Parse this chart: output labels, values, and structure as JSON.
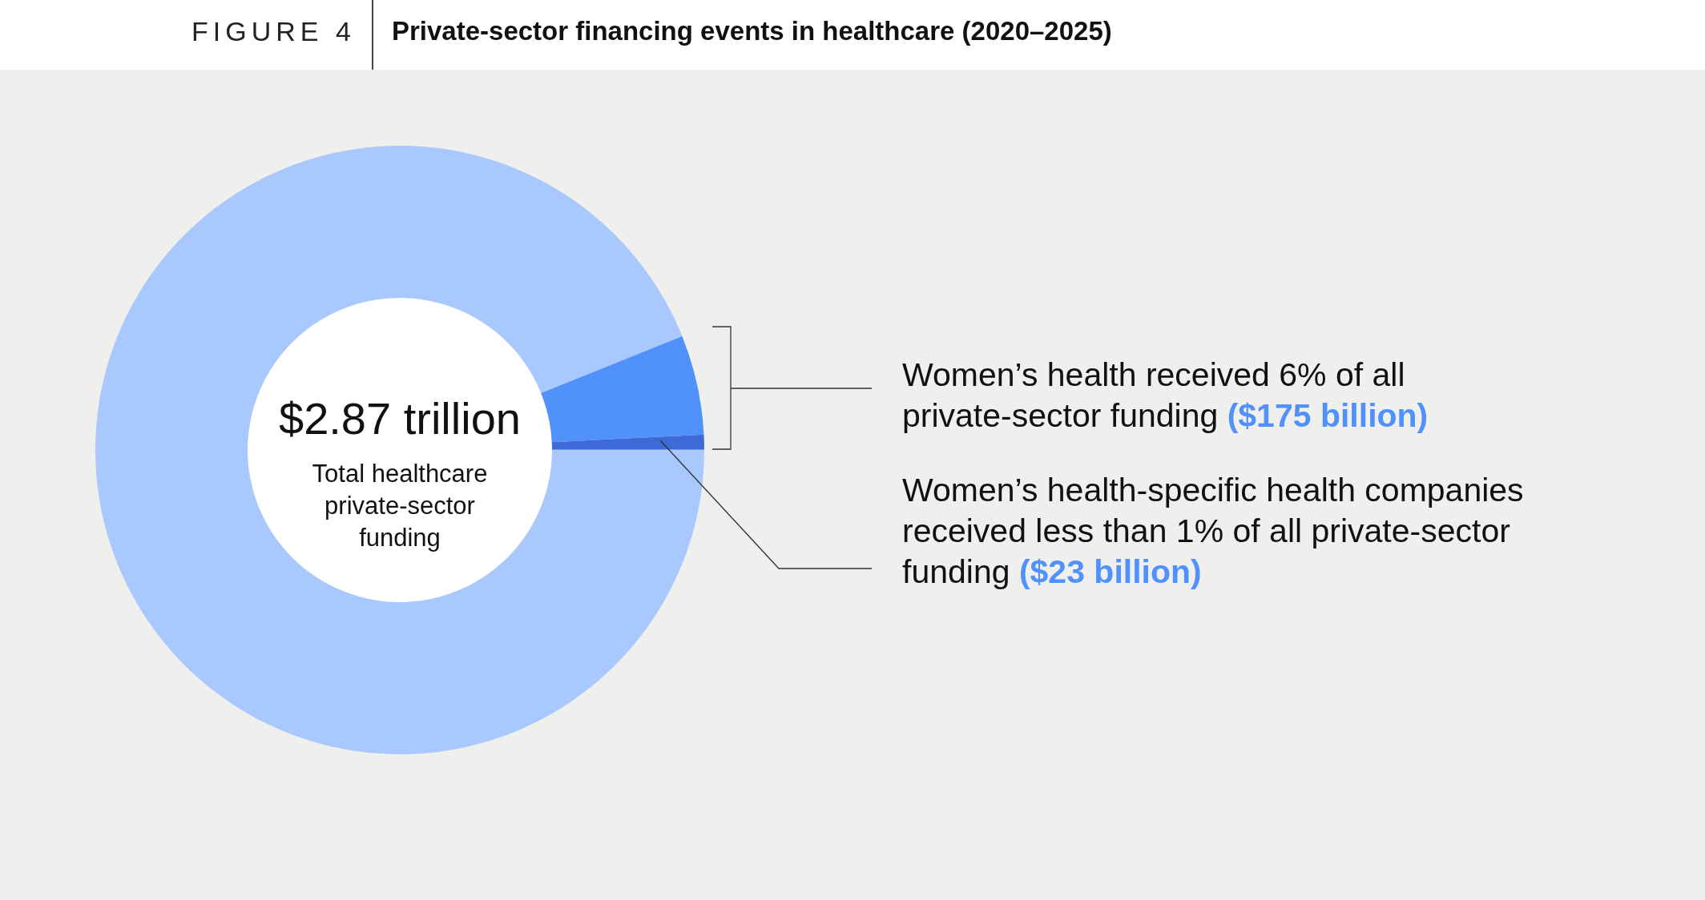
{
  "chart_data": {
    "type": "donut",
    "title": "Private-sector financing events in healthcare (2020–2025)",
    "categories": [
      null,
      null,
      null
    ],
    "values": [
      5.3,
      0.8,
      93.9
    ],
    "colors": [
      "#5191fb",
      "#3d6ad6",
      "#a9c8fd"
    ],
    "annotations": [
      "FIGURE 4",
      "$2.87 trillion",
      "Total healthcare private-sector funding",
      "Women’s health received 6% of all private-sector funding",
      "($175 billion)",
      "Women’s health-specific health companies received less than 1% of all private-sector funding",
      "($23 billion)"
    ]
  }
}
